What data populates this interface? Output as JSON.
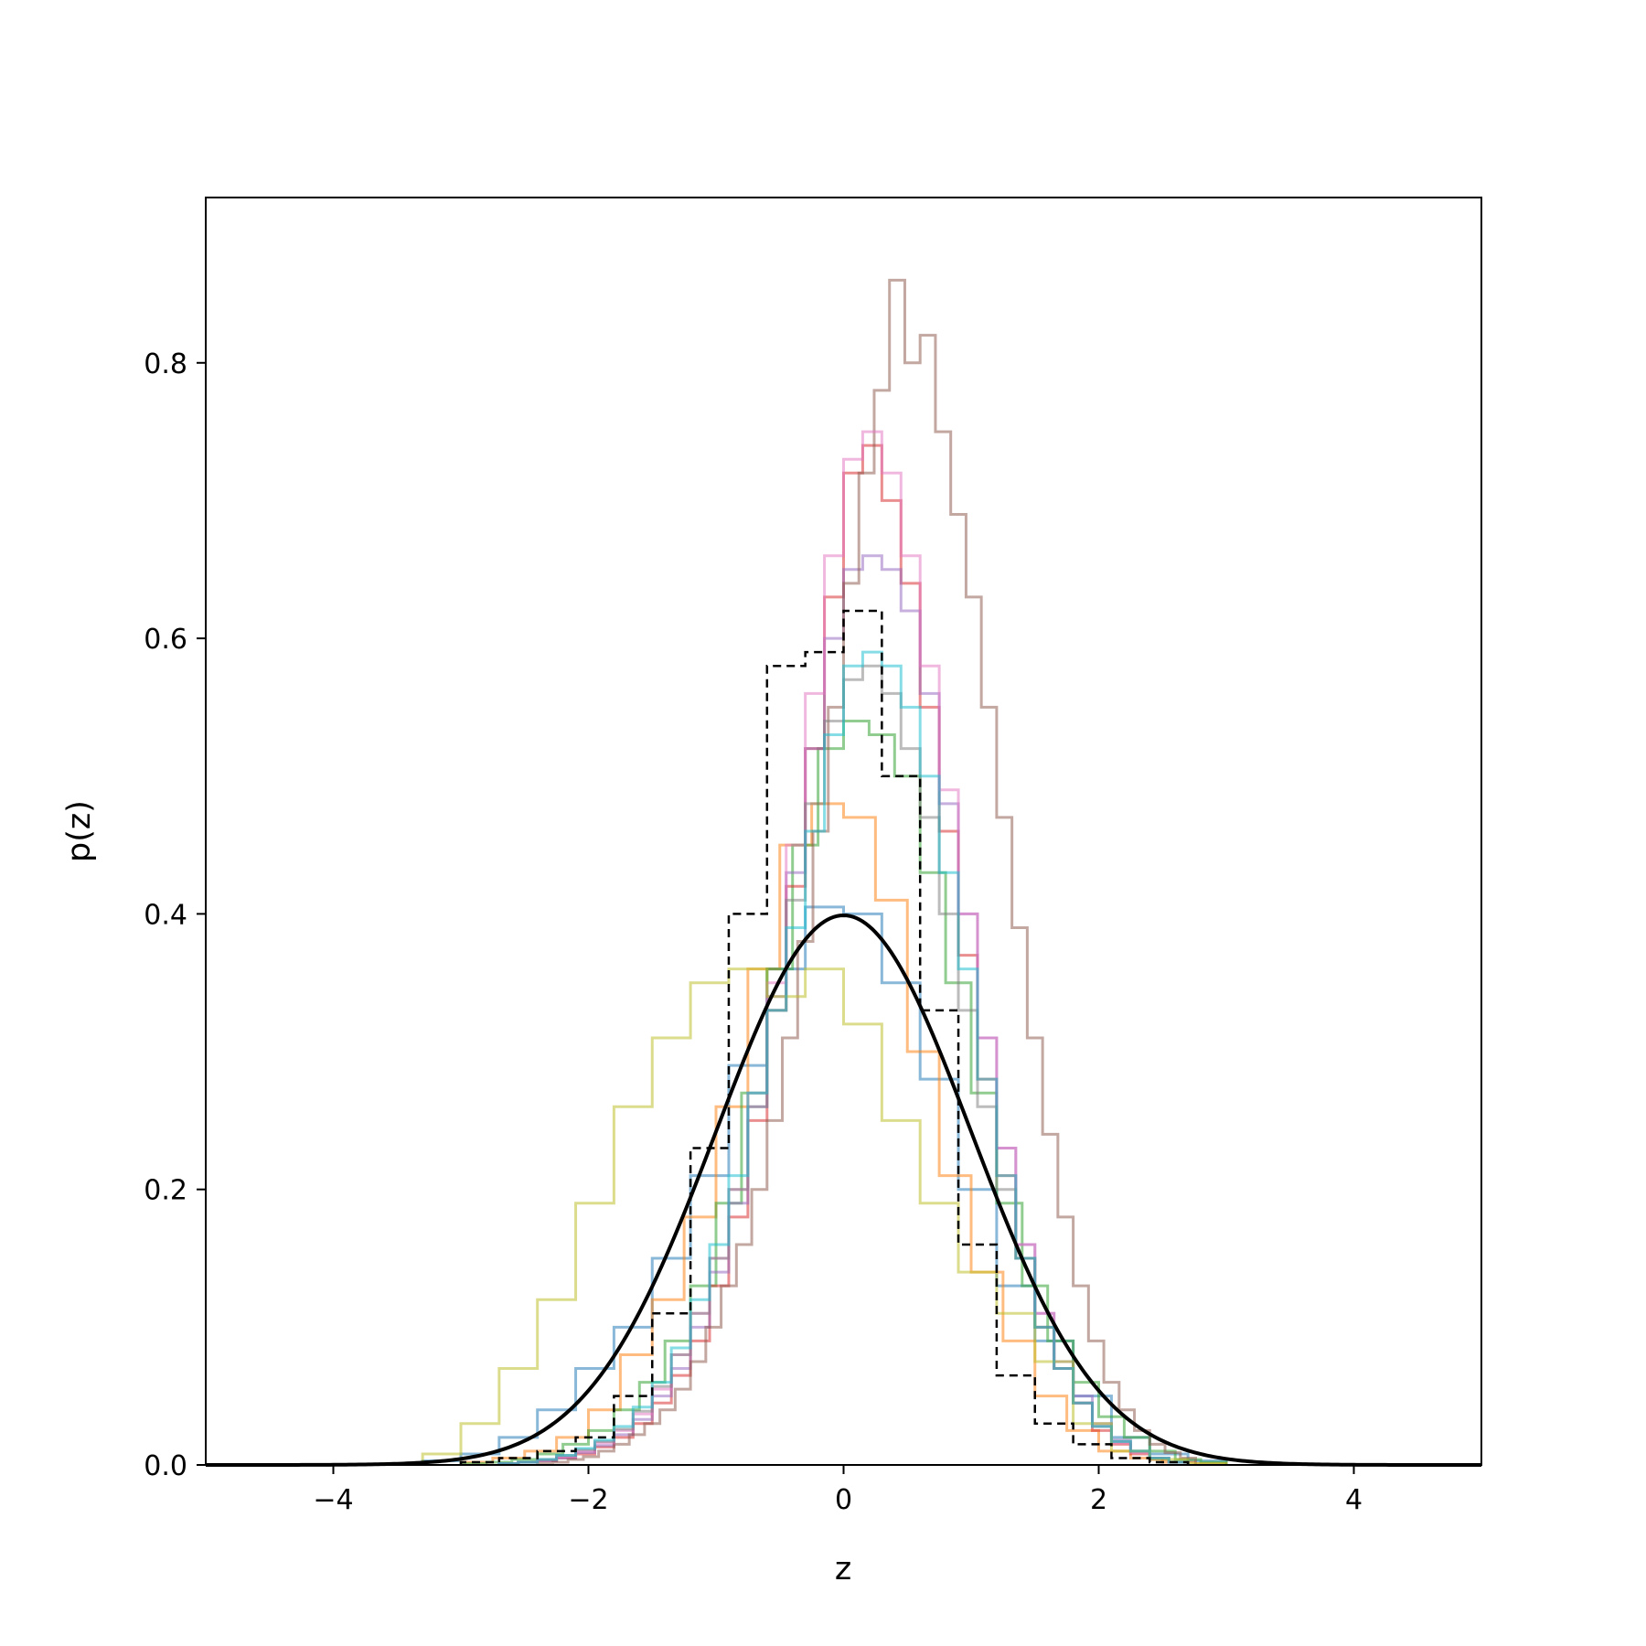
{
  "chart_data": {
    "type": "line",
    "title": "",
    "xlabel": "z",
    "ylabel": "p(z)",
    "xlim": [
      -5,
      5
    ],
    "ylim": [
      0,
      0.92
    ],
    "xticks": [
      -4,
      -2,
      0,
      2,
      4
    ],
    "xtick_labels": [
      "−4",
      "−2",
      "0",
      "2",
      "4"
    ],
    "yticks": [
      0.0,
      0.2,
      0.4,
      0.6,
      0.8
    ],
    "ytick_labels": [
      "0.0",
      "0.2",
      "0.4",
      "0.6",
      "0.8"
    ],
    "grid": false,
    "legend": "none",
    "reference_curve": {
      "kind": "standard normal density",
      "mean": 0,
      "std": 1,
      "color": "#000000",
      "style": "solid"
    },
    "dashed_histogram": {
      "color": "#000000",
      "style": "dashed",
      "edges": [
        -3.0,
        -2.7,
        -2.4,
        -2.1,
        -1.8,
        -1.5,
        -1.2,
        -0.9,
        -0.6,
        -0.3,
        0.0,
        0.3,
        0.6,
        0.9,
        1.2,
        1.5,
        1.8,
        2.1,
        2.4,
        2.7
      ],
      "values": [
        0.002,
        0.005,
        0.01,
        0.02,
        0.05,
        0.11,
        0.23,
        0.4,
        0.58,
        0.59,
        0.62,
        0.5,
        0.33,
        0.16,
        0.065,
        0.03,
        0.015,
        0.005,
        0.002
      ]
    },
    "series": [
      {
        "color": "#1f77b4",
        "bin_width": 0.3,
        "edges_start": -3.3,
        "values": [
          0.003,
          0.008,
          0.02,
          0.04,
          0.07,
          0.1,
          0.15,
          0.21,
          0.29,
          0.36,
          0.405,
          0.4,
          0.35,
          0.28,
          0.2,
          0.13,
          0.09,
          0.05,
          0.02,
          0.008,
          0.003
        ]
      },
      {
        "color": "#ff7f0e",
        "bin_width": 0.25,
        "edges_start": -3.0,
        "values": [
          0.002,
          0.005,
          0.01,
          0.02,
          0.04,
          0.08,
          0.12,
          0.18,
          0.26,
          0.36,
          0.45,
          0.48,
          0.47,
          0.41,
          0.3,
          0.21,
          0.14,
          0.09,
          0.05,
          0.025,
          0.01,
          0.005,
          0.002,
          0.001
        ]
      },
      {
        "color": "#2ca02c",
        "bin_width": 0.2,
        "edges_start": -3.0,
        "values": [
          0.001,
          0.002,
          0.004,
          0.008,
          0.015,
          0.025,
          0.04,
          0.06,
          0.09,
          0.13,
          0.19,
          0.27,
          0.36,
          0.45,
          0.52,
          0.54,
          0.53,
          0.5,
          0.43,
          0.35,
          0.27,
          0.19,
          0.13,
          0.09,
          0.06,
          0.035,
          0.02,
          0.01,
          0.004,
          0.002
        ]
      },
      {
        "color": "#d62728",
        "bin_width": 0.15,
        "edges_start": -2.7,
        "values": [
          0.001,
          0.002,
          0.003,
          0.005,
          0.008,
          0.013,
          0.02,
          0.03,
          0.045,
          0.065,
          0.09,
          0.13,
          0.18,
          0.25,
          0.33,
          0.42,
          0.52,
          0.63,
          0.72,
          0.74,
          0.7,
          0.64,
          0.55,
          0.46,
          0.37,
          0.28,
          0.21,
          0.15,
          0.1,
          0.07,
          0.045,
          0.025,
          0.015,
          0.008,
          0.004,
          0.002
        ]
      },
      {
        "color": "#9467bd",
        "bin_width": 0.15,
        "edges_start": -2.7,
        "values": [
          0.001,
          0.002,
          0.003,
          0.005,
          0.009,
          0.014,
          0.022,
          0.033,
          0.05,
          0.07,
          0.1,
          0.14,
          0.19,
          0.26,
          0.34,
          0.43,
          0.52,
          0.6,
          0.65,
          0.66,
          0.65,
          0.62,
          0.56,
          0.48,
          0.4,
          0.31,
          0.23,
          0.16,
          0.11,
          0.075,
          0.05,
          0.03,
          0.018,
          0.01,
          0.005,
          0.002
        ]
      },
      {
        "color": "#8c564b",
        "bin_width": 0.12,
        "edges_start": -2.4,
        "values": [
          0.001,
          0.002,
          0.004,
          0.006,
          0.01,
          0.015,
          0.022,
          0.03,
          0.04,
          0.055,
          0.075,
          0.1,
          0.13,
          0.16,
          0.2,
          0.25,
          0.31,
          0.38,
          0.46,
          0.55,
          0.64,
          0.72,
          0.78,
          0.86,
          0.8,
          0.82,
          0.75,
          0.69,
          0.63,
          0.55,
          0.47,
          0.39,
          0.31,
          0.24,
          0.18,
          0.13,
          0.09,
          0.06,
          0.04,
          0.025,
          0.015,
          0.009,
          0.005
        ]
      },
      {
        "color": "#e377c2",
        "bin_width": 0.15,
        "edges_start": -2.7,
        "values": [
          0.001,
          0.002,
          0.004,
          0.006,
          0.01,
          0.016,
          0.025,
          0.037,
          0.055,
          0.08,
          0.11,
          0.15,
          0.2,
          0.27,
          0.35,
          0.45,
          0.56,
          0.66,
          0.73,
          0.75,
          0.72,
          0.66,
          0.58,
          0.49,
          0.4,
          0.31,
          0.23,
          0.16,
          0.11,
          0.07,
          0.045,
          0.028,
          0.016,
          0.009,
          0.005,
          0.002
        ]
      },
      {
        "color": "#7f7f7f",
        "bin_width": 0.15,
        "edges_start": -2.7,
        "values": [
          0.001,
          0.002,
          0.004,
          0.007,
          0.011,
          0.017,
          0.026,
          0.039,
          0.057,
          0.08,
          0.11,
          0.15,
          0.2,
          0.26,
          0.33,
          0.41,
          0.48,
          0.54,
          0.57,
          0.58,
          0.56,
          0.52,
          0.47,
          0.4,
          0.33,
          0.26,
          0.2,
          0.15,
          0.1,
          0.07,
          0.045,
          0.028,
          0.017,
          0.01,
          0.005,
          0.002
        ]
      },
      {
        "color": "#bcbd22",
        "bin_width": 0.3,
        "edges_start": -3.6,
        "values": [
          0.001,
          0.008,
          0.03,
          0.07,
          0.12,
          0.19,
          0.26,
          0.31,
          0.35,
          0.36,
          0.34,
          0.36,
          0.32,
          0.25,
          0.19,
          0.14,
          0.11,
          0.075,
          0.03,
          0.01,
          0.004,
          0.001
        ]
      },
      {
        "color": "#17becf",
        "bin_width": 0.15,
        "edges_start": -2.7,
        "values": [
          0.001,
          0.002,
          0.004,
          0.007,
          0.012,
          0.018,
          0.028,
          0.042,
          0.06,
          0.085,
          0.12,
          0.16,
          0.21,
          0.27,
          0.33,
          0.39,
          0.46,
          0.53,
          0.58,
          0.59,
          0.58,
          0.55,
          0.5,
          0.43,
          0.36,
          0.28,
          0.21,
          0.15,
          0.1,
          0.07,
          0.045,
          0.028,
          0.017,
          0.01,
          0.005,
          0.002
        ]
      }
    ]
  }
}
